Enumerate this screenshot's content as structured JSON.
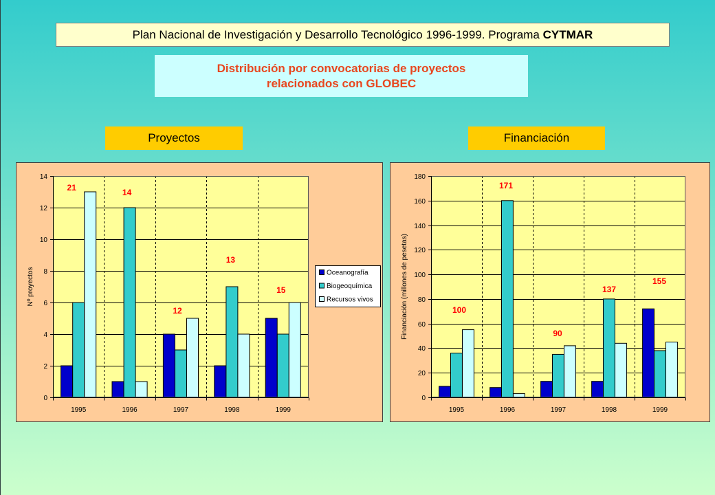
{
  "slide": {
    "title": "Plan Nacional de Investigación y Desarrollo Tecnológico 1996-1999. Programa",
    "title_emphasis": "CYTMAR",
    "subtitle": [
      "Distribución por convocatorias de proyectos",
      "relacionados con GLOBEC"
    ],
    "subtitle_color": "#E8461E",
    "total_label_color": "#FF0000"
  },
  "chart_data": [
    {
      "type": "bar",
      "title": "Proyectos",
      "categories": [
        "1995",
        "1996",
        "1997",
        "1998",
        "1999"
      ],
      "series": [
        {
          "name": "Oceanografía",
          "color": "#0000CC",
          "values": [
            2,
            1,
            4,
            2,
            5
          ]
        },
        {
          "name": "Biogeoquímica",
          "color": "#33CCCC",
          "values": [
            6,
            12,
            3,
            7,
            4
          ]
        },
        {
          "name": "Recursos vivos",
          "color": "#CCFFFF",
          "values": [
            13,
            1,
            5,
            4,
            6
          ]
        }
      ],
      "totals": [
        21,
        14,
        12,
        13,
        15
      ],
      "ylabel": "Nº proyectos",
      "ylim": [
        0,
        14
      ],
      "yticks": [
        0,
        2,
        4,
        6,
        8,
        10,
        12,
        14
      ],
      "grid": true,
      "legend": "right"
    },
    {
      "type": "bar",
      "title": "Financiación",
      "categories": [
        "1995",
        "1996",
        "1997",
        "1998",
        "1999"
      ],
      "series": [
        {
          "color": "#0000CC",
          "values": [
            9,
            8,
            13,
            13,
            72
          ]
        },
        {
          "color": "#33CCCC",
          "values": [
            36,
            160,
            35,
            80,
            38
          ]
        },
        {
          "color": "#CCFFFF",
          "values": [
            55,
            3,
            42,
            44,
            45
          ]
        }
      ],
      "totals": [
        100,
        171,
        90,
        137,
        155
      ],
      "ylabel": "Financiación (millones de pesetas)",
      "ylim": [
        0,
        180
      ],
      "yticks": [
        0,
        20,
        40,
        60,
        80,
        100,
        120,
        140,
        160,
        180
      ],
      "grid": true,
      "legend": null
    }
  ]
}
